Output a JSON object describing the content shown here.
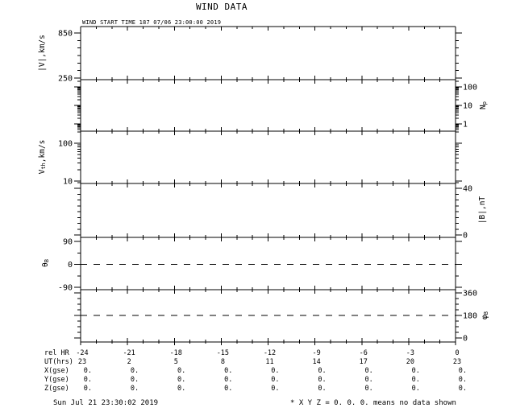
{
  "chart_data": {
    "type": "line",
    "title": "WIND DATA",
    "annotation": "WIND START TIME 187 07/06 23:00:00 2019",
    "x_axis": {
      "range_hours": [
        -24,
        0
      ],
      "major_step_hr": 3,
      "minor_step_hr": 1,
      "tick_labels": [
        "-24",
        "-21",
        "-18",
        "-15",
        "-12",
        "-9",
        "-6",
        "-3",
        "0"
      ]
    },
    "panels": [
      {
        "id": "speed",
        "ylabel": "|V|,km/s",
        "ylabel_parts": [
          {
            "t": "|V|,km/s"
          }
        ],
        "label_side": "left",
        "scale": "linear",
        "labeled_ticks": [
          {
            "v": 850,
            "label": "850"
          },
          {
            "v": 250,
            "label": "250"
          }
        ],
        "minor_ticks": [
          350,
          450,
          550,
          650,
          750
        ],
        "series": []
      },
      {
        "id": "density",
        "ylabel": "Np",
        "ylabel_parts": [
          {
            "t": "N"
          },
          {
            "t": "p",
            "sub": true
          }
        ],
        "label_side": "right",
        "scale": "log",
        "labeled_ticks": [
          {
            "v": 100,
            "label": "100"
          },
          {
            "v": 10,
            "label": "10"
          },
          {
            "v": 1,
            "label": "1"
          }
        ],
        "minor_ticks": [
          200,
          90,
          80,
          70,
          60,
          50,
          40,
          30,
          20,
          9,
          8,
          7,
          6,
          5,
          4,
          3,
          2,
          0.9,
          0.8,
          0.7,
          0.6,
          0.5
        ],
        "series": []
      },
      {
        "id": "thermal-speed",
        "ylabel": "Vth,km/s",
        "ylabel_parts": [
          {
            "t": "V"
          },
          {
            "t": "th",
            "sub": true
          },
          {
            "t": ",km/s"
          }
        ],
        "label_side": "left",
        "scale": "log",
        "labeled_ticks": [
          {
            "v": 100,
            "label": "100"
          },
          {
            "v": 10,
            "label": "10"
          }
        ],
        "minor_ticks": [
          200,
          90,
          80,
          70,
          60,
          50,
          40,
          30,
          20,
          9
        ],
        "series": []
      },
      {
        "id": "field-magnitude",
        "ylabel": "|B|,nT",
        "ylabel_parts": [
          {
            "t": "|B|,nT"
          }
        ],
        "label_side": "right",
        "scale": "linear",
        "labeled_ticks": [
          {
            "v": 40,
            "label": "40"
          },
          {
            "v": 0,
            "label": "0"
          }
        ],
        "minor_ticks": [
          35,
          30,
          25,
          20,
          15,
          10,
          5
        ],
        "series": []
      },
      {
        "id": "theta-b",
        "ylabel": "θB",
        "ylabel_parts": [
          {
            "t": "θ"
          },
          {
            "t": "B",
            "sub": true
          }
        ],
        "label_side": "left",
        "scale": "linear",
        "labeled_ticks": [
          {
            "v": 90,
            "label": "90"
          },
          {
            "v": 0,
            "label": "0"
          },
          {
            "v": -90,
            "label": "-90"
          }
        ],
        "minor_ticks": [
          45,
          -45
        ],
        "series": []
      },
      {
        "id": "phi-b",
        "ylabel": "φB",
        "ylabel_parts": [
          {
            "t": "φ"
          },
          {
            "t": "B",
            "sub": true
          }
        ],
        "label_side": "right",
        "scale": "linear",
        "labeled_ticks": [
          {
            "v": 360,
            "label": "360"
          },
          {
            "v": 180,
            "label": "180"
          },
          {
            "v": 0,
            "label": "0"
          }
        ],
        "minor_ticks": [
          315,
          270,
          225,
          135,
          90,
          45
        ],
        "series": []
      }
    ],
    "reference_lines": [
      {
        "panel": "theta-b",
        "value": 0,
        "style": "dashed"
      },
      {
        "panel": "phi-b",
        "value": 180,
        "style": "dashed"
      }
    ]
  },
  "bottom_table": {
    "rows": [
      {
        "label": "rel HR",
        "values": [
          "-24",
          "-21",
          "-18",
          "-15",
          "-12",
          "-9",
          "-6",
          "-3",
          "0"
        ]
      },
      {
        "label": "UT(hrs)",
        "values": [
          "23",
          "2",
          "5",
          "8",
          "11",
          "14",
          "17",
          "20",
          "23"
        ]
      },
      {
        "label": "X(gse)",
        "values": [
          "0.",
          "0.",
          "0.",
          "0.",
          "0.",
          "0.",
          "0.",
          "0.",
          "0."
        ]
      },
      {
        "label": "Y(gse)",
        "values": [
          "0.",
          "0.",
          "0.",
          "0.",
          "0.",
          "0.",
          "0.",
          "0.",
          "0."
        ]
      },
      {
        "label": "Z(gse)",
        "values": [
          "0.",
          "0.",
          "0.",
          "0.",
          "0.",
          "0.",
          "0.",
          "0.",
          "0."
        ]
      }
    ]
  },
  "footer": {
    "timestamp": "Sun Jul 21 23:30:02 2019",
    "note": "* X Y Z = 0. 0. 0. means no data shown"
  },
  "colors": {
    "foreground": "#000000",
    "background": "#ffffff"
  }
}
